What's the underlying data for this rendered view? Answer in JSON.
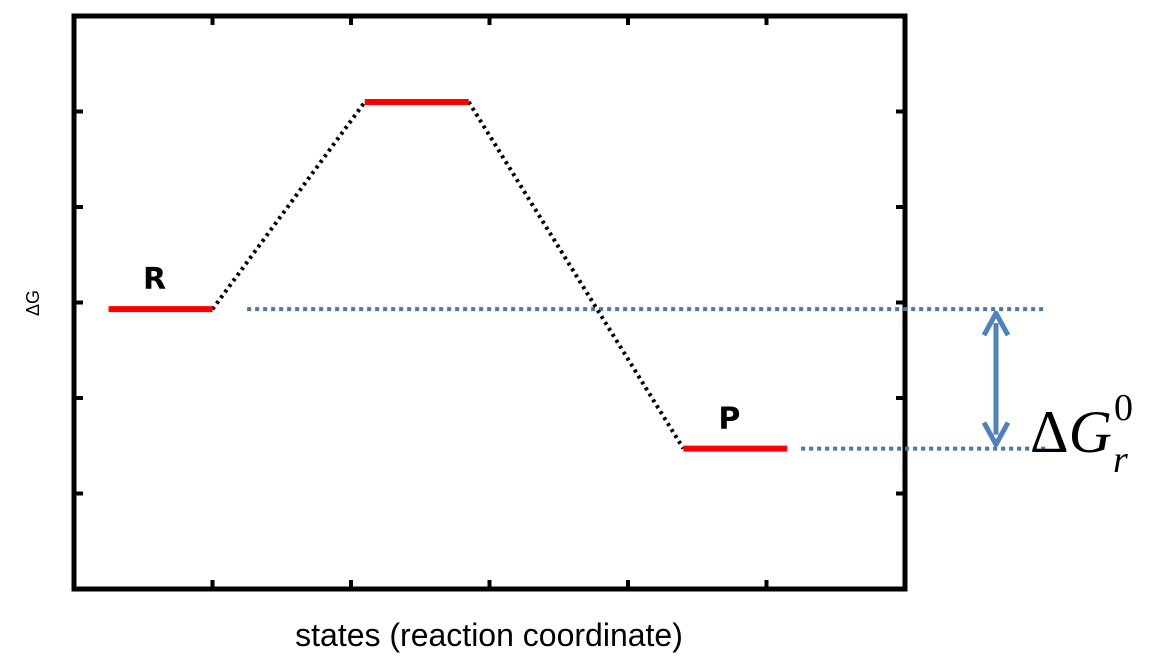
{
  "chart_data": {
    "type": "line",
    "title": "",
    "xlabel": "states (reaction coordinate)",
    "ylabel": "ΔG",
    "xlim": [
      0,
      6
    ],
    "ylim": [
      0,
      6
    ],
    "xticks": [
      1,
      2,
      3,
      4,
      5
    ],
    "yticks": [
      1,
      2,
      3,
      4,
      5
    ],
    "grid": false,
    "levels": [
      {
        "name": "R",
        "x": [
          0.25,
          1.0
        ],
        "y": 2.93
      },
      {
        "name": "",
        "x": [
          2.1,
          2.85
        ],
        "y": 5.1
      },
      {
        "name": "P",
        "x": [
          4.4,
          5.15
        ],
        "y": 1.47
      }
    ],
    "connectors": [
      {
        "x": [
          1.0,
          2.1
        ],
        "y": [
          2.93,
          5.1
        ]
      },
      {
        "x": [
          2.85,
          4.4
        ],
        "y": [
          5.1,
          1.47
        ]
      }
    ],
    "reference_lines": [
      {
        "y": 2.93,
        "x_start": 1.25
      },
      {
        "y": 1.47,
        "x_start": 5.25
      }
    ],
    "annotation": {
      "symbol": "ΔG",
      "subscript": "r",
      "superscript": "0",
      "from_y": 2.93,
      "to_y": 1.47
    },
    "colors": {
      "level": "#ff0000",
      "connector": "#000000",
      "reference": "#4a76ab",
      "arrow": "#4f81bd",
      "frame": "#000000"
    }
  }
}
